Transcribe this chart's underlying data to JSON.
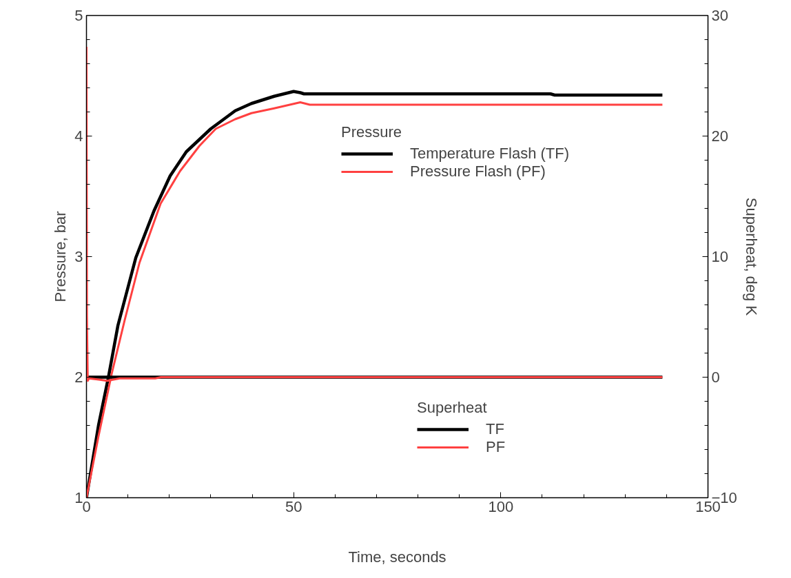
{
  "chart_data": {
    "type": "line",
    "xlabel": "Time, seconds",
    "ylabel": "Pressure, bar",
    "y2label": "Superheat, deg K",
    "xlim": [
      0,
      150
    ],
    "xticks": [
      0,
      50,
      100,
      150
    ],
    "ylim": [
      1,
      5
    ],
    "yticks": [
      1,
      2,
      3,
      4,
      5
    ],
    "y2lim": [
      -10,
      30
    ],
    "y2ticks": [
      -10,
      0,
      10,
      20,
      30
    ],
    "legend": "right",
    "grid": false,
    "line_style": "solid",
    "marker": "none",
    "annotations": [
      "Pressure",
      "Superheat"
    ],
    "series": [
      {
        "name": "Temperature Flash (TF)",
        "color": "#000000",
        "x": [
          0,
          2.9,
          5.3,
          7.6,
          11.9,
          16.3,
          20.2,
          24.1,
          30.0,
          35.9,
          39.8,
          45.3,
          50.0,
          51.6,
          52.5,
          112,
          113,
          139
        ],
        "values": [
          1,
          1.6,
          2.0,
          2.43,
          2.99,
          3.38,
          3.67,
          3.87,
          4.06,
          4.21,
          4.27,
          4.33,
          4.37,
          4.36,
          4.35,
          4.35,
          4.34,
          4.34
        ]
      },
      {
        "name": "Pressure Flash (PF)",
        "color": "#ff4040",
        "x": [
          0,
          2.9,
          6.1,
          9.2,
          12.8,
          17.9,
          22.6,
          27.3,
          31.2,
          35.9,
          39.8,
          45.3,
          51.6,
          53.9,
          139
        ],
        "values": [
          1,
          1.51,
          2.03,
          2.47,
          2.95,
          3.44,
          3.71,
          3.92,
          4.06,
          4.14,
          4.19,
          4.23,
          4.28,
          4.26,
          4.26
        ]
      },
      {
        "name": "TF",
        "color": "#000000",
        "axis": "y2",
        "x": [
          0,
          139
        ],
        "values": [
          0,
          0
        ]
      },
      {
        "name": "PF",
        "color": "#ff4040",
        "axis": "y2",
        "x": [
          0,
          0.1,
          0.3,
          0.6,
          3,
          5,
          8,
          16.6,
          18,
          139
        ],
        "values": [
          27.4,
          5.1,
          -0.3,
          -0.1,
          -0.2,
          -0.3,
          -0.1,
          -0.1,
          0,
          0
        ]
      }
    ]
  }
}
